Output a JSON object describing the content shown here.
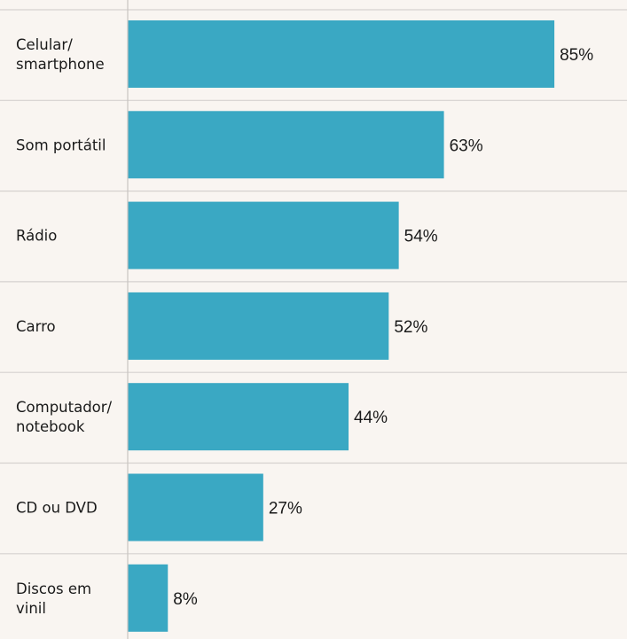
{
  "chart_data": {
    "type": "bar",
    "orientation": "horizontal",
    "categories": [
      "Celular/\nsmartphone",
      "Som portátil",
      "Rádio",
      "Carro",
      "Computador/\nnotebook",
      "CD ou DVD",
      "Discos em\nvinil"
    ],
    "values": [
      85,
      63,
      54,
      52,
      44,
      27,
      8
    ],
    "value_labels": [
      "85%",
      "63%",
      "54%",
      "52%",
      "44%",
      "27%",
      "8%"
    ],
    "title": "",
    "xlabel": "",
    "ylabel": "",
    "xlim": [
      0,
      100
    ],
    "grid": true,
    "legend": "none",
    "colors": {
      "bar": "#3aa8c3",
      "background": "#f9f5f1",
      "separator": "#d6d2cf",
      "axis": "#c8c4c1",
      "text": "#1a1a1a"
    }
  }
}
